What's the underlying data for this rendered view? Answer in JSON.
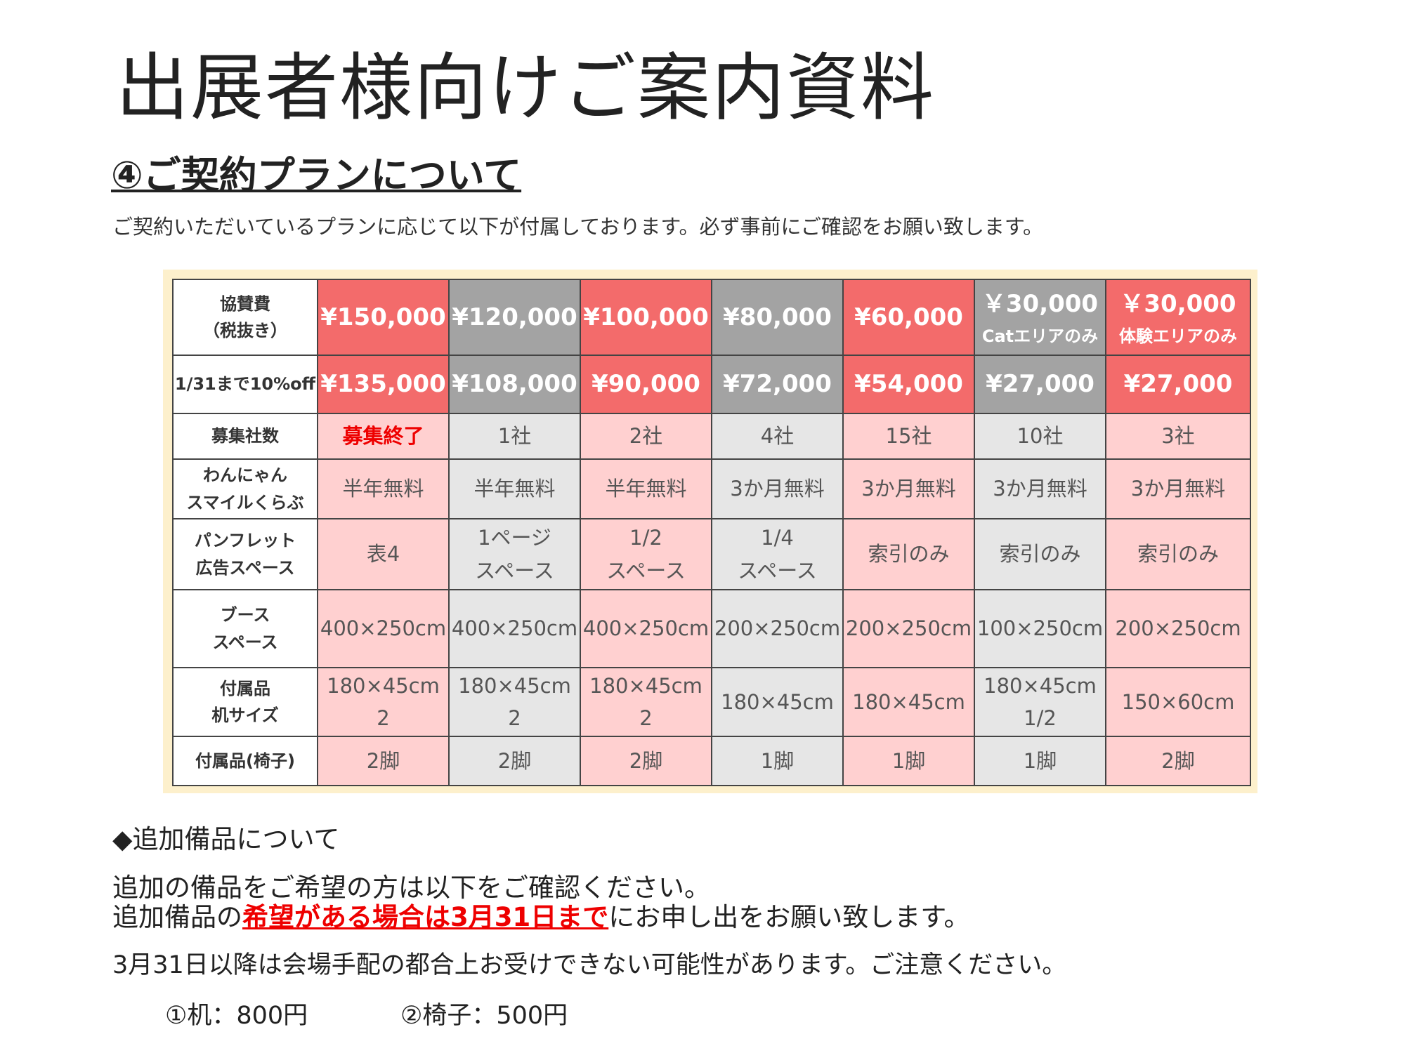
{
  "title": "出展者様向けご案内資料",
  "section": {
    "heading": "④ご契約プランについて",
    "intro": "ご契約いただいているプランに応じて以下が付属しております。必ず事前にご確認をお願い致します。"
  },
  "table": {
    "rows": [
      {
        "label": [
          "協賛費",
          "（税抜き）"
        ],
        "cells": [
          [
            "¥150,000"
          ],
          [
            "¥120,000"
          ],
          [
            "¥100,000"
          ],
          [
            "¥80,000"
          ],
          [
            "¥60,000"
          ],
          [
            "￥30,000",
            "Catエリアのみ"
          ],
          [
            "￥30,000",
            "体験エリアのみ"
          ]
        ]
      },
      {
        "label": [
          "1/31まで10%off"
        ],
        "cells": [
          [
            "¥135,000"
          ],
          [
            "¥108,000"
          ],
          [
            "¥90,000"
          ],
          [
            "¥72,000"
          ],
          [
            "¥54,000"
          ],
          [
            "¥27,000"
          ],
          [
            "¥27,000"
          ]
        ]
      },
      {
        "label": [
          "募集社数"
        ],
        "cells": [
          [
            "募集終了"
          ],
          [
            "1社"
          ],
          [
            "2社"
          ],
          [
            "4社"
          ],
          [
            "15社"
          ],
          [
            "10社"
          ],
          [
            "3社"
          ]
        ]
      },
      {
        "label": [
          "わんにゃん",
          "スマイルくらぶ"
        ],
        "cells": [
          [
            "半年無料"
          ],
          [
            "半年無料"
          ],
          [
            "半年無料"
          ],
          [
            "3か月無料"
          ],
          [
            "3か月無料"
          ],
          [
            "3か月無料"
          ],
          [
            "3か月無料"
          ]
        ]
      },
      {
        "label": [
          "パンフレット",
          "広告スペース"
        ],
        "cells": [
          [
            "表4"
          ],
          [
            "1ページ",
            "スペース"
          ],
          [
            "1/2",
            "スペース"
          ],
          [
            "1/4",
            "スペース"
          ],
          [
            "索引のみ"
          ],
          [
            "索引のみ"
          ],
          [
            "索引のみ"
          ]
        ]
      },
      {
        "label": [
          "ブース",
          "スペース"
        ],
        "cells": [
          [
            "400×250cm"
          ],
          [
            "400×250cm"
          ],
          [
            "400×250cm"
          ],
          [
            "200×250cm"
          ],
          [
            "200×250cm"
          ],
          [
            "100×250cm"
          ],
          [
            "200×250cm"
          ]
        ]
      },
      {
        "label": [
          "付属品",
          "机サイズ"
        ],
        "cells": [
          [
            "180×45cm",
            "2"
          ],
          [
            "180×45cm",
            "2"
          ],
          [
            "180×45cm",
            "2"
          ],
          [
            "180×45cm"
          ],
          [
            "180×45cm"
          ],
          [
            "180×45cm",
            "1/2"
          ],
          [
            "150×60cm"
          ]
        ]
      },
      {
        "label": [
          "付属品(椅子)"
        ],
        "cells": [
          [
            "2脚"
          ],
          [
            "2脚"
          ],
          [
            "2脚"
          ],
          [
            "1脚"
          ],
          [
            "1脚"
          ],
          [
            "1脚"
          ],
          [
            "2脚"
          ]
        ]
      }
    ]
  },
  "extras": {
    "heading": "◆追加備品について",
    "line1": "追加の備品をご希望の方は以下をご確認ください。",
    "line2": [
      "追加備品の",
      "希望がある場合は3月31日まで",
      "にお申し出をお願い致します。"
    ],
    "line3": "3月31日以降は会場手配の都合上お受けできない可能性があります。ご注意ください。",
    "items": [
      "①机：800円",
      "②椅子：500円"
    ]
  }
}
